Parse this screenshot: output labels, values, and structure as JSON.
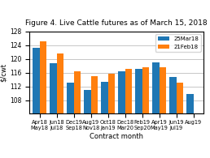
{
  "chart_data": {
    "type": "bar",
    "title": "Figure 4. Live Cattle futures as of March 15, 2018",
    "xlabel": "Contract month",
    "ylabel": "$/cwt",
    "categories": [
      "Apr18\nMay18",
      "Jun18\nJul18",
      "Dec19\nSep18",
      "Aug19\nNov18",
      "Oct18\nJan19",
      "Dec18\nMar20",
      "Feb19\nSep20",
      "Apr19\nMay19",
      "Jun19\nJul19",
      "Aug19"
    ],
    "series": [
      {
        "name": "25Mar18",
        "values": [
          123.2,
          118.8,
          113.0,
          111.0,
          113.3,
          116.3,
          117.0,
          119.0,
          114.8,
          109.8
        ]
      },
      {
        "name": "21Feb18",
        "values": [
          125.2,
          121.5,
          116.5,
          115.0,
          115.7,
          117.2,
          117.6,
          117.5,
          113.0,
          null
        ]
      }
    ],
    "ylim": [
      104,
      128
    ],
    "yticks": [
      108,
      112,
      116,
      120,
      124,
      128
    ],
    "grid": true,
    "legend": "upper right"
  }
}
